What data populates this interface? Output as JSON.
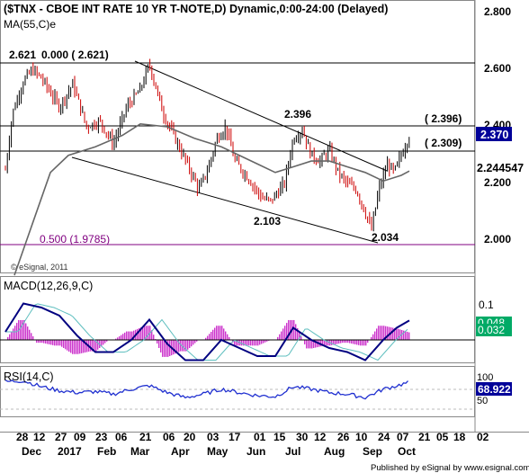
{
  "header": {
    "title": "($TNX - CBOE INT RATE 10 YR T-NOTE,D) Dynamic,0:00-24:00 (Delayed)",
    "ma_label": "MA(55,C)e"
  },
  "colors": {
    "up": "#000000",
    "down": "#cc0000",
    "ma": "#666666",
    "macd": "#000080",
    "signal": "#5fbfbf",
    "hist": "#cc33cc",
    "rsi": "#1f2fd0",
    "fib": "#800080",
    "last_bg": "#000099",
    "macd_box": "#00aa66"
  },
  "price_axis": {
    "ticks": [
      "2.800",
      "2.600",
      "2.400",
      "2.200",
      "2.000"
    ]
  },
  "price_labels": {
    "last": "2.370",
    "ma_value": "2.244547",
    "level_2396": "( 2.396)",
    "level_2309": "( 2.309)",
    "high_label": "2.621",
    "fib0": "0.000 ( 2.621)",
    "fib50": "0.500 (1.9785)",
    "pt_2396": "2.396",
    "pt_2103": "2.103",
    "pt_2034": "2.034",
    "watermark": "© eSignal, 2011"
  },
  "macd_panel": {
    "label": "MACD(12,26,9,C)",
    "tick": "0.1",
    "value1": "0.048",
    "value2": "0.032"
  },
  "rsi_panel": {
    "label": "RSI(14,C)",
    "tick100": "100",
    "tick50": "50",
    "value": "68.922"
  },
  "x_axis": {
    "days": [
      "28",
      "12",
      "27",
      "09",
      "23",
      "06",
      "21",
      "06",
      "20",
      "03",
      "17",
      "01",
      "15",
      "30",
      "12",
      "26",
      "10",
      "24",
      "07",
      "21",
      "05",
      "18",
      "02"
    ],
    "months": [
      "Dec",
      "2017",
      "Feb",
      "Mar",
      "Apr",
      "May",
      "Jun",
      "Jul",
      "Aug",
      "Sep",
      "Oct"
    ]
  },
  "footer": {
    "text": "Published by eSignal  by www.esignal.com"
  },
  "chart_data": {
    "type": "line",
    "title": "($TNX - CBOE INT RATE 10 YR T-NOTE,D) Dynamic,0:00-24:00 (Delayed)",
    "price_range": [
      1.9,
      2.85
    ],
    "horizontal_levels": [
      2.621,
      2.396,
      2.309,
      1.9785
    ],
    "series": [
      {
        "name": "$TNX",
        "points": [
          [
            0,
            2.25
          ],
          [
            8,
            2.45
          ],
          [
            20,
            2.56
          ],
          [
            30,
            2.6
          ],
          [
            40,
            2.57
          ],
          [
            50,
            2.52
          ],
          [
            60,
            2.47
          ],
          [
            75,
            2.55
          ],
          [
            90,
            2.4
          ],
          [
            105,
            2.42
          ],
          [
            120,
            2.34
          ],
          [
            135,
            2.47
          ],
          [
            150,
            2.53
          ],
          [
            160,
            2.62
          ],
          [
            175,
            2.45
          ],
          [
            190,
            2.35
          ],
          [
            205,
            2.25
          ],
          [
            215,
            2.18
          ],
          [
            225,
            2.25
          ],
          [
            235,
            2.36
          ],
          [
            245,
            2.4
          ],
          [
            255,
            2.28
          ],
          [
            270,
            2.22
          ],
          [
            285,
            2.15
          ],
          [
            295,
            2.14
          ],
          [
            310,
            2.2
          ],
          [
            320,
            2.36
          ],
          [
            330,
            2.39
          ],
          [
            340,
            2.3
          ],
          [
            350,
            2.28
          ],
          [
            360,
            2.32
          ],
          [
            370,
            2.24
          ],
          [
            380,
            2.2
          ],
          [
            390,
            2.18
          ],
          [
            400,
            2.1
          ],
          [
            407,
            2.04
          ],
          [
            415,
            2.18
          ],
          [
            425,
            2.27
          ],
          [
            432,
            2.24
          ],
          [
            440,
            2.3
          ],
          [
            449,
            2.37
          ]
        ]
      },
      {
        "name": "MA(55,C)e",
        "points": [
          [
            10,
            1.88
          ],
          [
            30,
            2.06
          ],
          [
            50,
            2.24
          ],
          [
            70,
            2.3
          ],
          [
            100,
            2.33
          ],
          [
            130,
            2.37
          ],
          [
            150,
            2.41
          ],
          [
            180,
            2.4
          ],
          [
            210,
            2.36
          ],
          [
            240,
            2.33
          ],
          [
            260,
            2.3
          ],
          [
            280,
            2.27
          ],
          [
            300,
            2.24
          ],
          [
            320,
            2.26
          ],
          [
            340,
            2.28
          ],
          [
            360,
            2.28
          ],
          [
            380,
            2.26
          ],
          [
            400,
            2.24
          ],
          [
            420,
            2.21
          ],
          [
            440,
            2.23
          ],
          [
            449,
            2.245
          ]
        ]
      },
      {
        "name": "MACD(12,26,9,C)",
        "points": [
          [
            0,
            0.02
          ],
          [
            20,
            0.09
          ],
          [
            40,
            0.08
          ],
          [
            60,
            0.06
          ],
          [
            80,
            0.01
          ],
          [
            100,
            -0.03
          ],
          [
            120,
            -0.03
          ],
          [
            140,
            0.0
          ],
          [
            160,
            0.05
          ],
          [
            180,
            -0.01
          ],
          [
            200,
            -0.05
          ],
          [
            220,
            -0.05
          ],
          [
            240,
            0.0
          ],
          [
            260,
            -0.02
          ],
          [
            280,
            -0.04
          ],
          [
            300,
            -0.04
          ],
          [
            320,
            0.03
          ],
          [
            340,
            0.0
          ],
          [
            360,
            -0.02
          ],
          [
            380,
            -0.03
          ],
          [
            400,
            -0.05
          ],
          [
            420,
            0.0
          ],
          [
            435,
            0.03
          ],
          [
            449,
            0.048
          ]
        ]
      },
      {
        "name": "RSI(14,C)",
        "points": [
          [
            0,
            70
          ],
          [
            20,
            72
          ],
          [
            40,
            60
          ],
          [
            60,
            52
          ],
          [
            80,
            48
          ],
          [
            100,
            50
          ],
          [
            120,
            45
          ],
          [
            140,
            55
          ],
          [
            160,
            62
          ],
          [
            180,
            48
          ],
          [
            200,
            38
          ],
          [
            220,
            45
          ],
          [
            240,
            55
          ],
          [
            260,
            48
          ],
          [
            280,
            42
          ],
          [
            300,
            40
          ],
          [
            320,
            60
          ],
          [
            340,
            55
          ],
          [
            360,
            48
          ],
          [
            380,
            45
          ],
          [
            400,
            38
          ],
          [
            420,
            55
          ],
          [
            435,
            62
          ],
          [
            449,
            68.9
          ]
        ]
      }
    ]
  }
}
